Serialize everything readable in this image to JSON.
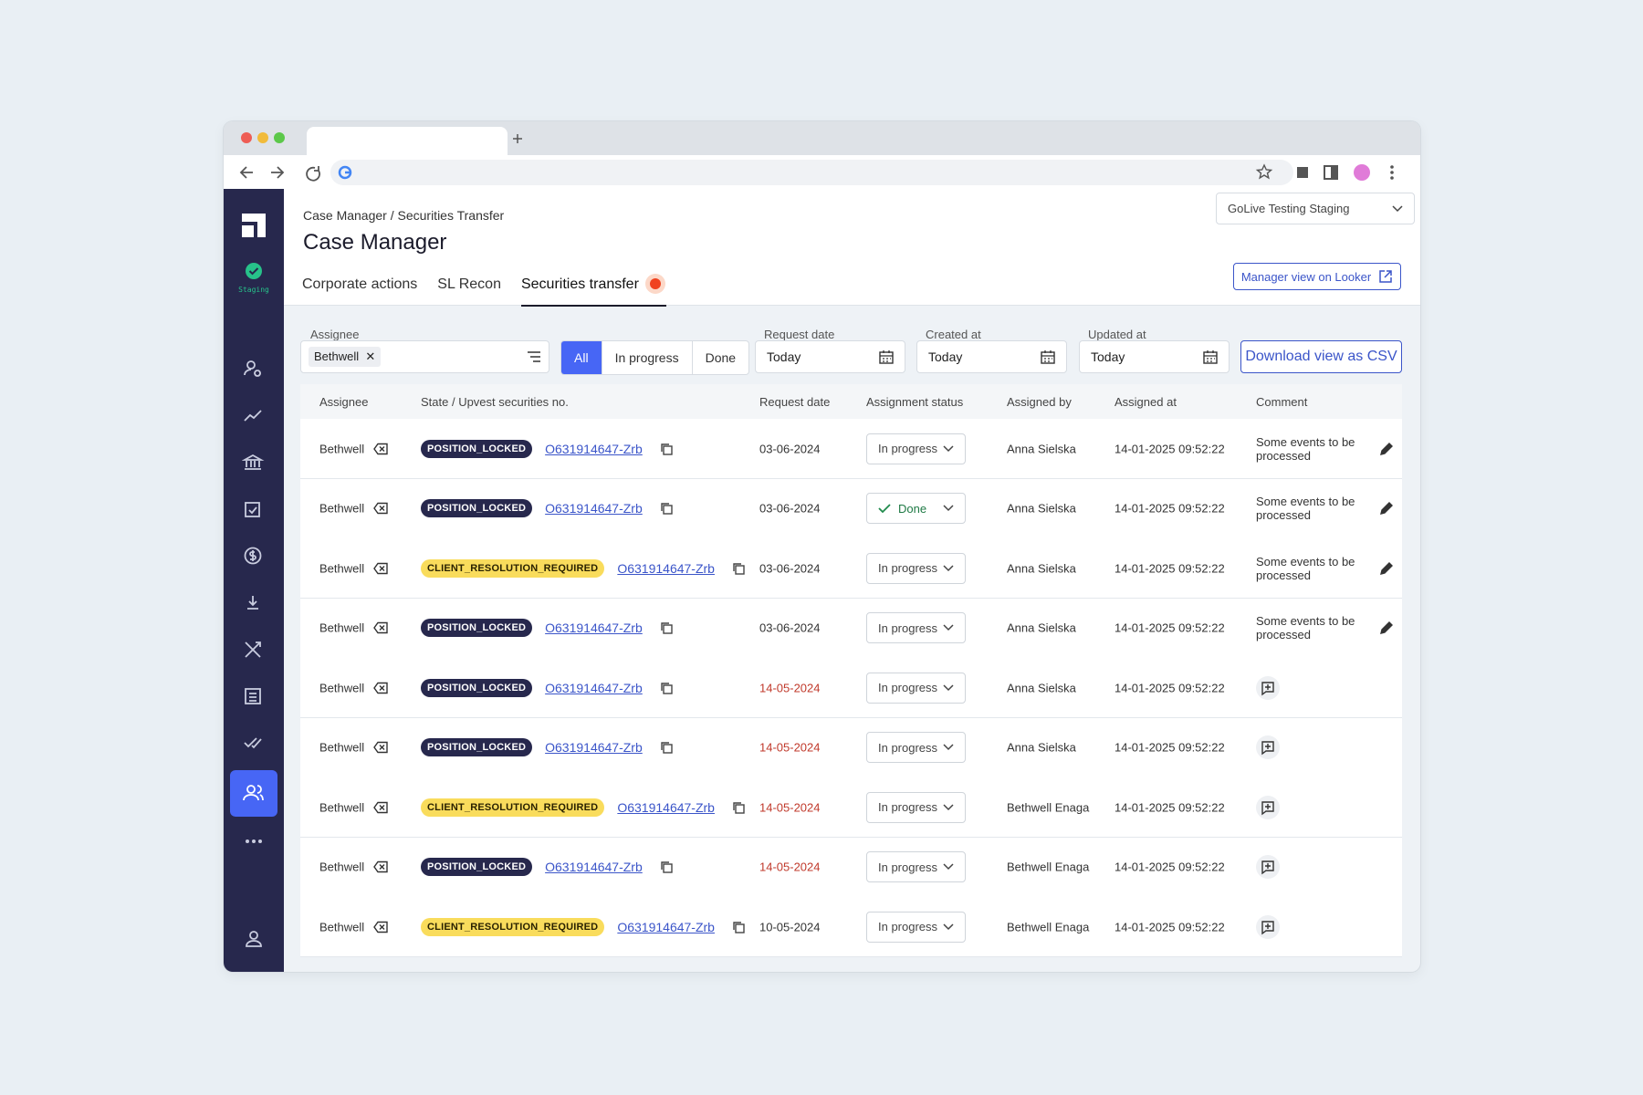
{
  "header": {
    "breadcrumb": [
      "Case Manager",
      "Securities Transfer"
    ],
    "title": "Case Manager",
    "env_badge": "Staging",
    "workspace": "GoLive Testing Staging",
    "looker_button": "Manager view on Looker"
  },
  "tabs": {
    "items": [
      "Corporate actions",
      "SL Recon",
      "Securities transfer"
    ],
    "active": 2
  },
  "filters": {
    "assignee_label": "Assignee",
    "assignee_chip": "Bethwell",
    "status_options": [
      "All",
      "In progress",
      "Done"
    ],
    "active_status": 0,
    "dates": [
      {
        "label": "Request date",
        "value": "Today"
      },
      {
        "label": "Created at",
        "value": "Today"
      },
      {
        "label": "Updated at",
        "value": "Today"
      }
    ],
    "download_button": "Download view as CSV"
  },
  "table": {
    "columns": [
      "Assignee",
      "State / Upvest securities no.",
      "Request date",
      "Assignment status",
      "Assigned by",
      "Assigned at",
      "Comment"
    ],
    "rows": [
      {
        "assignee": "Bethwell",
        "state": "POSITION_LOCKED",
        "security": "O631914647-Zrb",
        "request_date": "03-06-2024",
        "overdue": false,
        "status": "In progress",
        "assigned_by": "Anna Sielska",
        "assigned_at": "14-01-2025 09:52:22",
        "comment": "Some events to be processed"
      },
      {
        "assignee": "Bethwell",
        "state": "POSITION_LOCKED",
        "security": "O631914647-Zrb",
        "request_date": "03-06-2024",
        "overdue": false,
        "status": "Done",
        "assigned_by": "Anna Sielska",
        "assigned_at": "14-01-2025 09:52:22",
        "comment": "Some events to be processed"
      },
      {
        "assignee": "Bethwell",
        "state": "CLIENT_RESOLUTION_REQUIRED",
        "security": "O631914647-Zrb",
        "request_date": "03-06-2024",
        "overdue": false,
        "status": "In progress",
        "assigned_by": "Anna Sielska",
        "assigned_at": "14-01-2025 09:52:22",
        "comment": "Some events to be processed"
      },
      {
        "assignee": "Bethwell",
        "state": "POSITION_LOCKED",
        "security": "O631914647-Zrb",
        "request_date": "03-06-2024",
        "overdue": false,
        "status": "In progress",
        "assigned_by": "Anna Sielska",
        "assigned_at": "14-01-2025 09:52:22",
        "comment": "Some events to be processed"
      },
      {
        "assignee": "Bethwell",
        "state": "POSITION_LOCKED",
        "security": "O631914647-Zrb",
        "request_date": "14-05-2024",
        "overdue": true,
        "status": "In progress",
        "assigned_by": "Anna Sielska",
        "assigned_at": "14-01-2025 09:52:22",
        "comment": null
      },
      {
        "assignee": "Bethwell",
        "state": "POSITION_LOCKED",
        "security": "O631914647-Zrb",
        "request_date": "14-05-2024",
        "overdue": true,
        "status": "In progress",
        "assigned_by": "Anna Sielska",
        "assigned_at": "14-01-2025 09:52:22",
        "comment": null
      },
      {
        "assignee": "Bethwell",
        "state": "CLIENT_RESOLUTION_REQUIRED",
        "security": "O631914647-Zrb",
        "request_date": "14-05-2024",
        "overdue": true,
        "status": "In progress",
        "assigned_by": "Bethwell Enaga",
        "assigned_at": "14-01-2025 09:52:22",
        "comment": null
      },
      {
        "assignee": "Bethwell",
        "state": "POSITION_LOCKED",
        "security": "O631914647-Zrb",
        "request_date": "14-05-2024",
        "overdue": true,
        "status": "In progress",
        "assigned_by": "Bethwell Enaga",
        "assigned_at": "14-01-2025 09:52:22",
        "comment": null
      },
      {
        "assignee": "Bethwell",
        "state": "CLIENT_RESOLUTION_REQUIRED",
        "security": "O631914647-Zrb",
        "request_date": "10-05-2024",
        "overdue": false,
        "status": "In progress",
        "assigned_by": "Bethwell Enaga",
        "assigned_at": "14-01-2025 09:52:22",
        "comment": null
      }
    ]
  }
}
